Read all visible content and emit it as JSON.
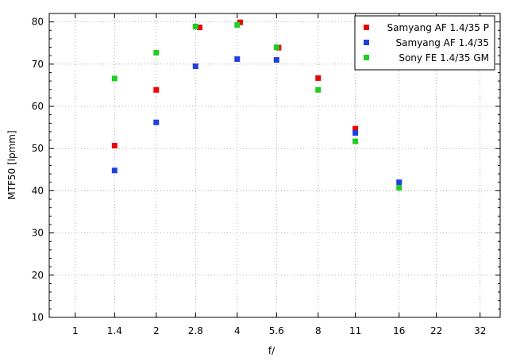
{
  "chart_data": {
    "type": "scatter",
    "xlabel": "f/",
    "ylabel": "MTF50 [lpmm]",
    "x_scale": "log2",
    "x_ticks": [
      "1",
      "1.4",
      "2",
      "2.8",
      "4",
      "5.6",
      "8",
      "11",
      "16",
      "22",
      "32"
    ],
    "xlim": [
      0.8,
      38
    ],
    "ylim": [
      10,
      82
    ],
    "y_ticks": [
      10,
      20,
      30,
      40,
      50,
      60,
      70,
      80
    ],
    "grid": true,
    "legend_position": "top-right",
    "series": [
      {
        "name": "Samyang AF 1.4/35 P",
        "color": "#ee0000",
        "points": [
          [
            1.4,
            50.7
          ],
          [
            2,
            63.9
          ],
          [
            2.9,
            78.7
          ],
          [
            4.1,
            79.9
          ],
          [
            5.7,
            73.9
          ],
          [
            8,
            66.7
          ],
          [
            11,
            54.7
          ]
        ]
      },
      {
        "name": "Samyang AF 1.4/35",
        "color": "#1f3fdd",
        "points": [
          [
            1.4,
            44.8
          ],
          [
            2,
            56.2
          ],
          [
            2.8,
            69.5
          ],
          [
            4,
            71.2
          ],
          [
            5.6,
            71.0
          ],
          [
            11,
            53.7
          ],
          [
            16,
            42.0
          ]
        ]
      },
      {
        "name": "Sony FE 1.4/35 GM",
        "color": "#22cc22",
        "points": [
          [
            1.4,
            66.6
          ],
          [
            2,
            72.7
          ],
          [
            2.8,
            78.9
          ],
          [
            4,
            79.3
          ],
          [
            5.6,
            74.0
          ],
          [
            8,
            63.9
          ],
          [
            11,
            51.7
          ],
          [
            16,
            40.7
          ]
        ]
      }
    ]
  }
}
